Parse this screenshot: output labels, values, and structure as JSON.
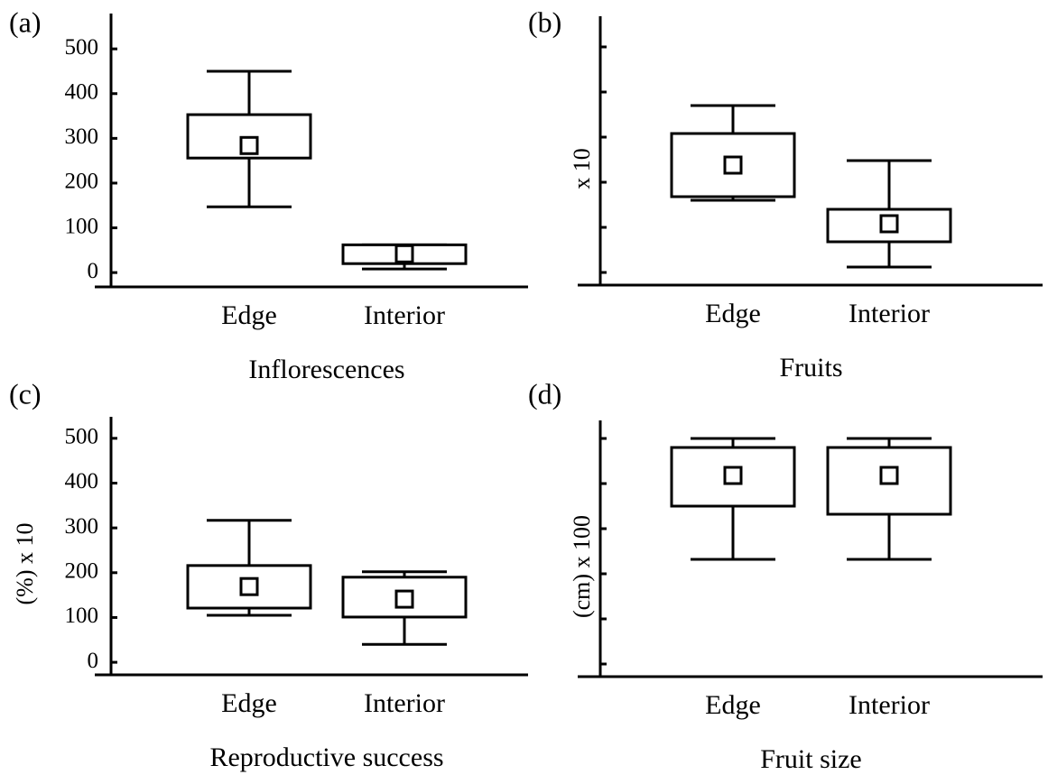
{
  "chart_data": [
    {
      "type": "box",
      "panel": "(a)",
      "xlabel": "Inflorescences",
      "categories": [
        "Edge",
        "Interior"
      ],
      "values": [
        {
          "max": 450,
          "q3": 353,
          "mean": 284,
          "q1": 256,
          "min": 147
        },
        {
          "max": 62,
          "q3": 62,
          "mean": 42,
          "q1": 20,
          "min": 8
        }
      ],
      "ylim": [
        -32,
        579
      ],
      "yticks": [
        0,
        100,
        200,
        300,
        400,
        500
      ],
      "tick_labels": true
    },
    {
      "type": "box",
      "panel": "(b)",
      "xlabel": "Fruits",
      "ylabel": "x 10",
      "categories": [
        "Edge",
        "Interior"
      ],
      "values": [
        {
          "max": 3.7,
          "q3": 3.08,
          "mean": 2.38,
          "q1": 1.68,
          "min": 1.6
        },
        {
          "max": 2.48,
          "q3": 1.4,
          "mean": 1.08,
          "q1": 0.68,
          "min": 0.12
        }
      ],
      "ylim": [
        -0.28,
        5.68
      ],
      "yticks": [
        0,
        1,
        2,
        3,
        4,
        5
      ],
      "tick_labels": false
    },
    {
      "type": "box",
      "panel": "(c)",
      "xlabel": "Reproductive success",
      "ylabel": "(%) x 10",
      "categories": [
        "Edge",
        "Interior"
      ],
      "values": [
        {
          "max": 317,
          "q3": 216,
          "mean": 169,
          "q1": 121,
          "min": 105
        },
        {
          "max": 202,
          "q3": 190,
          "mean": 141,
          "q1": 101,
          "min": 40
        }
      ],
      "ylim": [
        -28,
        548
      ],
      "yticks": [
        0,
        100,
        200,
        300,
        400,
        500
      ],
      "tick_labels": true
    },
    {
      "type": "box",
      "panel": "(d)",
      "xlabel": "Fruit size",
      "ylabel": "(cm) x 100",
      "categories": [
        "Edge",
        "Interior"
      ],
      "values": [
        {
          "max": 5.0,
          "q3": 4.8,
          "mean": 4.18,
          "q1": 3.5,
          "min": 2.32
        },
        {
          "max": 5.0,
          "q3": 4.8,
          "mean": 4.18,
          "q1": 3.32,
          "min": 2.32
        }
      ],
      "ylim": [
        -0.28,
        5.4
      ],
      "yticks": [
        0,
        1,
        2,
        3,
        4,
        5
      ],
      "tick_labels": false
    }
  ]
}
